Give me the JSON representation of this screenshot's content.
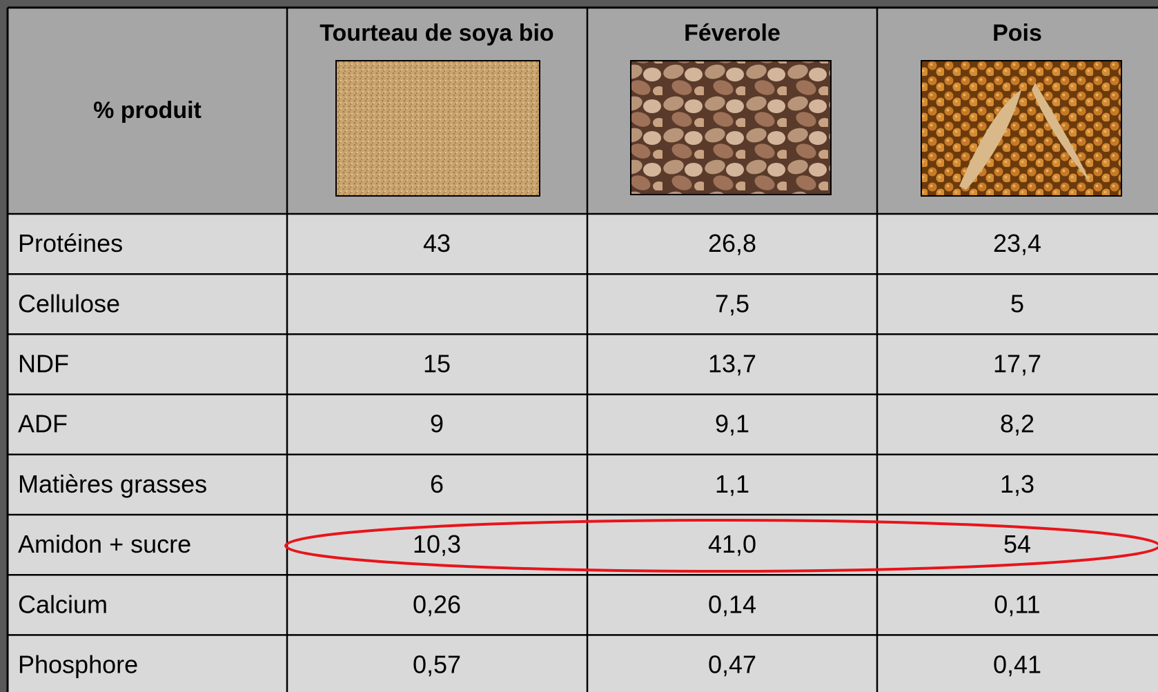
{
  "table": {
    "header": [
      "% produit",
      "Tourteau de soya bio",
      "Féverole",
      "Pois"
    ],
    "rows": [
      [
        "Protéines",
        "43",
        "26,8",
        "23,4"
      ],
      [
        "Cellulose",
        null,
        "7,5",
        "5"
      ],
      [
        "NDF",
        "15",
        "13,7",
        "17,7"
      ],
      [
        "ADF",
        "9",
        "9,1",
        "8,2"
      ],
      [
        "Matières grasses",
        "6",
        "1,1",
        "1,3"
      ],
      [
        "Amidon + sucre",
        "10,3",
        "41,0",
        "54"
      ],
      [
        "Calcium",
        "0,26",
        "0,14",
        "0,11"
      ],
      [
        "Phosphore",
        "0,57",
        "0,47",
        "0,41"
      ]
    ]
  }
}
